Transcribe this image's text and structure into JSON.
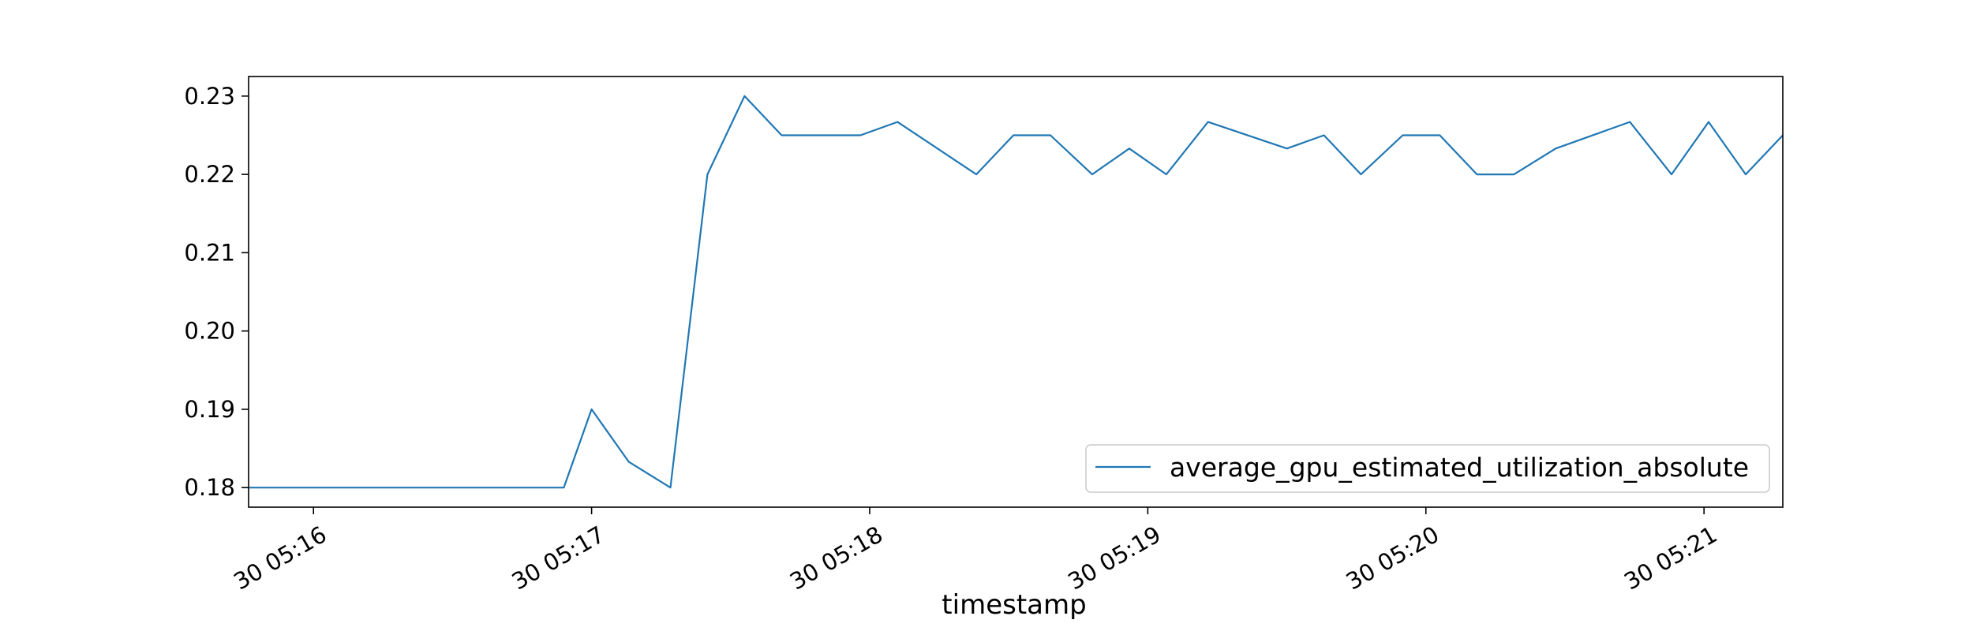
{
  "chart_data": {
    "type": "line",
    "title": "",
    "xlabel": "timestamp",
    "ylabel": "",
    "x_ticks": [
      "30 05:16",
      "30 05:17",
      "30 05:18",
      "30 05:19",
      "30 05:20",
      "30 05:21"
    ],
    "y_ticks": [
      "0.18",
      "0.19",
      "0.20",
      "0.21",
      "0.22",
      "0.23"
    ],
    "xlim": [
      "30 05:15:46",
      "30 05:21:17"
    ],
    "ylim": [
      0.1775,
      0.2325
    ],
    "grid": false,
    "legend_position": "lower-right",
    "series": [
      {
        "name": "average_gpu_estimated_utilization_absolute",
        "color": "#1f77b4",
        "x": [
          "30 05:15:46",
          "30 05:16:54",
          "30 05:17:00",
          "30 05:17:08",
          "30 05:17:17",
          "30 05:17:25",
          "30 05:17:33",
          "30 05:17:41",
          "30 05:17:58",
          "30 05:18:06",
          "30 05:18:23",
          "30 05:18:31",
          "30 05:18:39",
          "30 05:18:48",
          "30 05:18:56",
          "30 05:19:04",
          "30 05:19:13",
          "30 05:19:30",
          "30 05:19:38",
          "30 05:19:46",
          "30 05:19:55",
          "30 05:20:03",
          "30 05:20:11",
          "30 05:20:19",
          "30 05:20:28",
          "30 05:20:44",
          "30 05:20:53",
          "30 05:21:01",
          "30 05:21:09",
          "30 05:21:17"
        ],
        "y": [
          0.18,
          0.18,
          0.19,
          0.1833,
          0.18,
          0.22,
          0.23,
          0.225,
          0.225,
          0.2267,
          0.22,
          0.225,
          0.225,
          0.22,
          0.2233,
          0.22,
          0.2267,
          0.2233,
          0.225,
          0.22,
          0.225,
          0.225,
          0.22,
          0.22,
          0.2233,
          0.2267,
          0.22,
          0.2267,
          0.22,
          0.225
        ]
      }
    ]
  }
}
